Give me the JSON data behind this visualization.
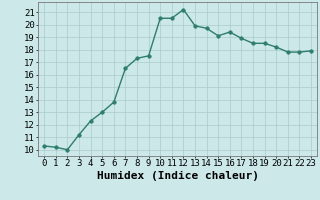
{
  "x": [
    0,
    1,
    2,
    3,
    4,
    5,
    6,
    7,
    8,
    9,
    10,
    11,
    12,
    13,
    14,
    15,
    16,
    17,
    18,
    19,
    20,
    21,
    22,
    23
  ],
  "y": [
    10.3,
    10.2,
    10.0,
    11.2,
    12.3,
    13.0,
    13.8,
    16.5,
    17.3,
    17.5,
    20.5,
    20.5,
    21.2,
    19.9,
    19.7,
    19.1,
    19.4,
    18.9,
    18.5,
    18.5,
    18.2,
    17.8,
    17.8,
    17.9
  ],
  "line_color": "#2e7d6e",
  "marker_color": "#2e7d6e",
  "bg_color": "#cce8e8",
  "grid_color": "#aacccc",
  "xlabel": "Humidex (Indice chaleur)",
  "xlim": [
    -0.5,
    23.5
  ],
  "ylim": [
    9.5,
    21.8
  ],
  "yticks": [
    10,
    11,
    12,
    13,
    14,
    15,
    16,
    17,
    18,
    19,
    20,
    21
  ],
  "xticks": [
    0,
    1,
    2,
    3,
    4,
    5,
    6,
    7,
    8,
    9,
    10,
    11,
    12,
    13,
    14,
    15,
    16,
    17,
    18,
    19,
    20,
    21,
    22,
    23
  ],
  "xlabel_fontsize": 8,
  "tick_fontsize": 6.5,
  "line_width": 1.0,
  "marker_size": 2.5
}
